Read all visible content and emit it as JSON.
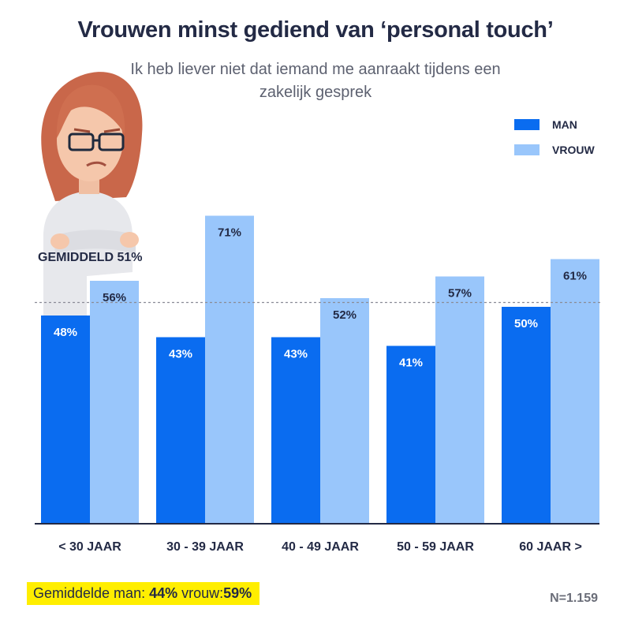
{
  "title": "Vrouwen minst gediend van ‘personal touch’",
  "subtitle": "Ik heb liever niet dat iemand me aanraakt tijdens een zakelijk gesprek",
  "legend": [
    {
      "label": "MAN",
      "color": "#0a6cf0"
    },
    {
      "label": "VROUW",
      "color": "#99c6fb"
    }
  ],
  "average_line_label": "GEMIDDELD 51%",
  "footer": {
    "avg_prefix": "Gemiddelde man:",
    "avg_man": "44%",
    "avg_mid": "vrouw:",
    "avg_woman": "59%",
    "sample": "N=1.159"
  },
  "chart_data": {
    "type": "bar",
    "categories": [
      "< 30 JAAR",
      "30 - 39 JAAR",
      "40 - 49 JAAR",
      "50 - 59 JAAR",
      "60 JAAR >"
    ],
    "series": [
      {
        "name": "MAN",
        "values": [
          48,
          43,
          43,
          41,
          50
        ],
        "color": "#0a6cf0"
      },
      {
        "name": "VROUW",
        "values": [
          56,
          71,
          52,
          57,
          61
        ],
        "color": "#99c6fb"
      }
    ],
    "value_suffix": "%",
    "reference_line": 51,
    "ylim": [
      0,
      100
    ],
    "grid": false,
    "legend_position": "top-right"
  }
}
